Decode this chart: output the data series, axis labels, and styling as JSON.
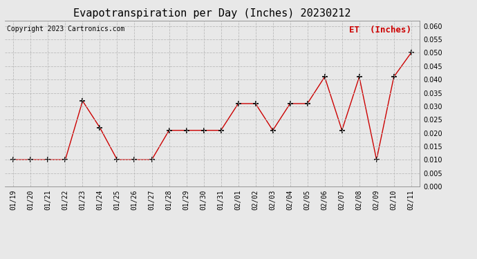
{
  "title": "Evapotranspiration per Day (Inches) 20230212",
  "copyright_text": "Copyright 2023 Cartronics.com",
  "legend_label": "ET  (Inches)",
  "dates": [
    "01/19",
    "01/20",
    "01/21",
    "01/22",
    "01/23",
    "01/24",
    "01/25",
    "01/26",
    "01/27",
    "01/28",
    "01/29",
    "01/30",
    "01/31",
    "02/01",
    "02/02",
    "02/03",
    "02/04",
    "02/05",
    "02/06",
    "02/07",
    "02/08",
    "02/09",
    "02/10",
    "02/11"
  ],
  "et_values": [
    0.01,
    0.01,
    0.01,
    0.01,
    0.032,
    0.022,
    0.01,
    0.01,
    0.01,
    0.021,
    0.021,
    0.021,
    0.021,
    0.031,
    0.031,
    0.021,
    0.031,
    0.031,
    0.041,
    0.021,
    0.041,
    0.01,
    0.041,
    0.05
  ],
  "line_color": "#cc0000",
  "marker": "+",
  "marker_color": "#000000",
  "ylim": [
    0.0,
    0.062
  ],
  "yticks": [
    0.0,
    0.005,
    0.01,
    0.015,
    0.02,
    0.025,
    0.03,
    0.035,
    0.04,
    0.045,
    0.05,
    0.055,
    0.06
  ],
  "bg_color": "#e8e8e8",
  "grid_color": "#bbbbbb",
  "title_fontsize": 11,
  "copyright_fontsize": 7,
  "legend_fontsize": 9,
  "tick_fontsize": 7
}
